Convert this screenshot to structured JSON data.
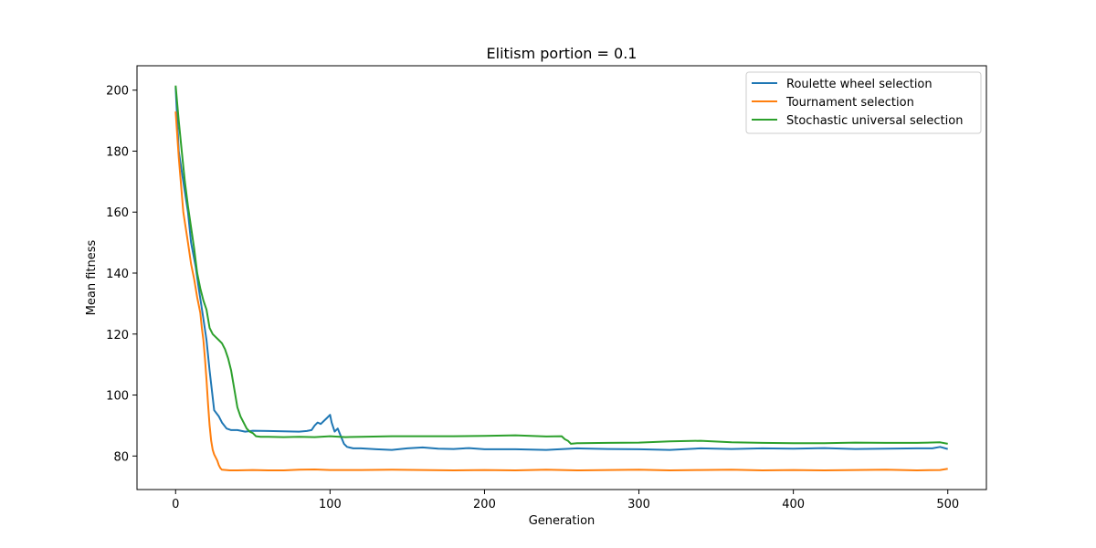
{
  "chart_data": {
    "type": "line",
    "title": "Elitism portion = 0.1",
    "xlabel": "Generation",
    "ylabel": "Mean fitness",
    "xlim": [
      -25,
      525
    ],
    "ylim": [
      69,
      208
    ],
    "xticks": [
      0,
      100,
      200,
      300,
      400,
      500
    ],
    "yticks": [
      80,
      100,
      120,
      140,
      160,
      180,
      200
    ],
    "grid": false,
    "legend_position": "top-right",
    "series": [
      {
        "name": "Roulette wheel selection",
        "color": "#1f77b4",
        "points": [
          [
            0,
            201
          ],
          [
            2,
            180
          ],
          [
            5,
            170
          ],
          [
            8,
            160
          ],
          [
            10,
            150
          ],
          [
            13,
            142
          ],
          [
            15,
            135
          ],
          [
            18,
            125
          ],
          [
            20,
            118
          ],
          [
            22,
            108
          ],
          [
            25,
            95
          ],
          [
            28,
            93
          ],
          [
            30,
            91
          ],
          [
            33,
            89
          ],
          [
            36,
            88.5
          ],
          [
            40,
            88.5
          ],
          [
            45,
            88
          ],
          [
            50,
            88.3
          ],
          [
            60,
            88.2
          ],
          [
            70,
            88.1
          ],
          [
            80,
            88
          ],
          [
            85,
            88.2
          ],
          [
            88,
            88.5
          ],
          [
            90,
            90
          ],
          [
            92,
            91
          ],
          [
            94,
            90.5
          ],
          [
            96,
            91.5
          ],
          [
            98,
            92.5
          ],
          [
            100,
            93.5
          ],
          [
            101,
            91
          ],
          [
            103,
            88
          ],
          [
            105,
            89
          ],
          [
            107,
            86.5
          ],
          [
            109,
            84
          ],
          [
            111,
            83
          ],
          [
            115,
            82.5
          ],
          [
            120,
            82.5
          ],
          [
            130,
            82.2
          ],
          [
            140,
            82
          ],
          [
            150,
            82.5
          ],
          [
            160,
            82.8
          ],
          [
            170,
            82.4
          ],
          [
            180,
            82.3
          ],
          [
            190,
            82.6
          ],
          [
            200,
            82.2
          ],
          [
            220,
            82.2
          ],
          [
            240,
            82
          ],
          [
            260,
            82.5
          ],
          [
            280,
            82.3
          ],
          [
            300,
            82.2
          ],
          [
            320,
            82
          ],
          [
            340,
            82.5
          ],
          [
            360,
            82.3
          ],
          [
            380,
            82.5
          ],
          [
            400,
            82.4
          ],
          [
            420,
            82.6
          ],
          [
            440,
            82.3
          ],
          [
            460,
            82.4
          ],
          [
            480,
            82.5
          ],
          [
            490,
            82.5
          ],
          [
            495,
            83
          ],
          [
            500,
            82.3
          ]
        ]
      },
      {
        "name": "Tournament selection",
        "color": "#ff7f0e",
        "points": [
          [
            0,
            193
          ],
          [
            2,
            178
          ],
          [
            5,
            160
          ],
          [
            8,
            150
          ],
          [
            10,
            143
          ],
          [
            12,
            138
          ],
          [
            14,
            132
          ],
          [
            16,
            127
          ],
          [
            17,
            122
          ],
          [
            18,
            118
          ],
          [
            19,
            112
          ],
          [
            20,
            105
          ],
          [
            21,
            97
          ],
          [
            22,
            90
          ],
          [
            23,
            85
          ],
          [
            24,
            82
          ],
          [
            25,
            80.5
          ],
          [
            26,
            79.5
          ],
          [
            27,
            78.5
          ],
          [
            28,
            77
          ],
          [
            29,
            76
          ],
          [
            30,
            75.5
          ],
          [
            35,
            75.3
          ],
          [
            40,
            75.3
          ],
          [
            50,
            75.4
          ],
          [
            60,
            75.3
          ],
          [
            70,
            75.3
          ],
          [
            80,
            75.5
          ],
          [
            90,
            75.6
          ],
          [
            100,
            75.4
          ],
          [
            120,
            75.4
          ],
          [
            140,
            75.5
          ],
          [
            160,
            75.4
          ],
          [
            180,
            75.3
          ],
          [
            200,
            75.4
          ],
          [
            220,
            75.3
          ],
          [
            240,
            75.5
          ],
          [
            260,
            75.3
          ],
          [
            280,
            75.4
          ],
          [
            300,
            75.5
          ],
          [
            320,
            75.3
          ],
          [
            340,
            75.4
          ],
          [
            360,
            75.5
          ],
          [
            380,
            75.3
          ],
          [
            400,
            75.4
          ],
          [
            420,
            75.3
          ],
          [
            440,
            75.4
          ],
          [
            460,
            75.5
          ],
          [
            480,
            75.3
          ],
          [
            495,
            75.4
          ],
          [
            500,
            75.8
          ]
        ]
      },
      {
        "name": "Stochastic universal selection",
        "color": "#2ca02c",
        "points": [
          [
            0,
            201.5
          ],
          [
            2,
            190
          ],
          [
            4,
            180
          ],
          [
            6,
            170
          ],
          [
            8,
            162
          ],
          [
            10,
            155
          ],
          [
            12,
            148
          ],
          [
            14,
            140
          ],
          [
            16,
            135
          ],
          [
            18,
            131
          ],
          [
            20,
            128
          ],
          [
            22,
            122
          ],
          [
            24,
            120
          ],
          [
            26,
            119
          ],
          [
            28,
            118
          ],
          [
            30,
            117
          ],
          [
            32,
            115
          ],
          [
            34,
            112
          ],
          [
            36,
            108
          ],
          [
            38,
            102
          ],
          [
            40,
            96
          ],
          [
            42,
            93
          ],
          [
            44,
            91
          ],
          [
            46,
            89
          ],
          [
            48,
            88
          ],
          [
            50,
            87.5
          ],
          [
            52,
            86.5
          ],
          [
            55,
            86.3
          ],
          [
            60,
            86.3
          ],
          [
            70,
            86.2
          ],
          [
            80,
            86.3
          ],
          [
            90,
            86.2
          ],
          [
            100,
            86.5
          ],
          [
            110,
            86.2
          ],
          [
            120,
            86.3
          ],
          [
            140,
            86.5
          ],
          [
            160,
            86.5
          ],
          [
            180,
            86.5
          ],
          [
            200,
            86.6
          ],
          [
            220,
            86.8
          ],
          [
            240,
            86.4
          ],
          [
            250,
            86.5
          ],
          [
            252,
            85.5
          ],
          [
            254,
            85
          ],
          [
            256,
            84
          ],
          [
            260,
            84.2
          ],
          [
            280,
            84.3
          ],
          [
            300,
            84.4
          ],
          [
            320,
            84.8
          ],
          [
            340,
            85
          ],
          [
            360,
            84.5
          ],
          [
            380,
            84.3
          ],
          [
            400,
            84.2
          ],
          [
            420,
            84.2
          ],
          [
            440,
            84.4
          ],
          [
            460,
            84.3
          ],
          [
            480,
            84.3
          ],
          [
            495,
            84.5
          ],
          [
            500,
            84
          ]
        ]
      }
    ]
  }
}
